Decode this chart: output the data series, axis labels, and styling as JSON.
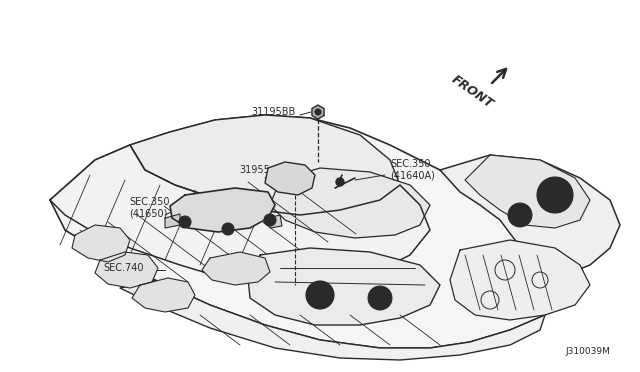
{
  "background_color": "#ffffff",
  "line_color": "#2a2a2a",
  "text_color": "#2a2a2a",
  "labels": {
    "part1": "31195BB",
    "part2": "31955",
    "part3_left": "SEC.350\n(41650)",
    "part4": "SEC.350\n(41640A)",
    "part5": "SEC.740",
    "front": "FRONT",
    "diagram_id": "J310039M"
  },
  "figsize": [
    6.4,
    3.72
  ],
  "dpi": 100
}
